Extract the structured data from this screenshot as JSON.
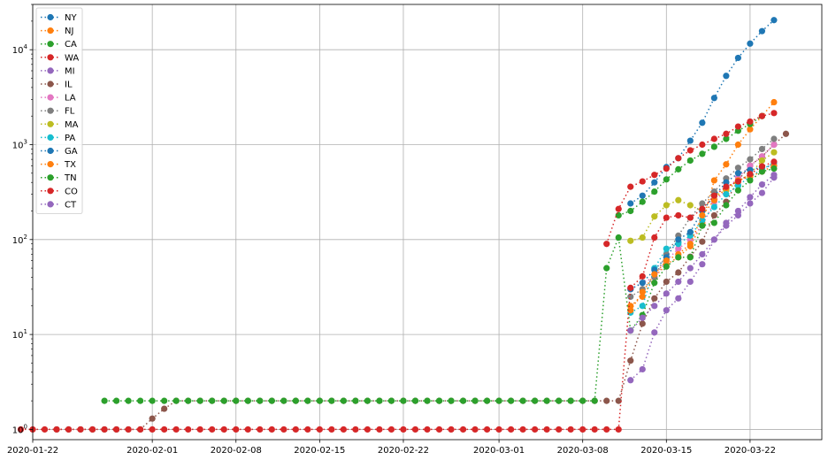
{
  "chart_data": {
    "type": "line",
    "title": "",
    "xlabel": "",
    "ylabel": "",
    "y_scale": "log",
    "ylim": [
      0.78,
      30000
    ],
    "xlim": [
      "2020-01-22",
      "2020-03-28"
    ],
    "grid": true,
    "legend_position": "top-left",
    "x_ticks": [
      "2020-01-22",
      "2020-02-01",
      "2020-02-08",
      "2020-02-15",
      "2020-02-22",
      "2020-03-01",
      "2020-03-08",
      "2020-03-15",
      "2020-03-22"
    ],
    "y_ticks": [
      {
        "value": 1,
        "base": "10",
        "exp": "0"
      },
      {
        "value": 10,
        "base": "10",
        "exp": "1"
      },
      {
        "value": 100,
        "base": "10",
        "exp": "2"
      },
      {
        "value": 1000,
        "base": "10",
        "exp": "3"
      },
      {
        "value": 10000,
        "base": "10",
        "exp": "4"
      }
    ],
    "series": [
      {
        "name": "NY",
        "color": "#1f77b4",
        "start": "2020-03-12",
        "values": [
          240,
          290,
          400,
          580,
          720,
          1100,
          1700,
          3100,
          5300,
          8200,
          11600,
          15700,
          20500
        ]
      },
      {
        "name": "NJ",
        "color": "#ff7f0e",
        "start": "2020-03-12",
        "values": [
          20,
          25,
          40,
          55,
          65,
          85,
          150,
          420,
          620,
          1000,
          1450,
          2000,
          2800
        ]
      },
      {
        "name": "CA",
        "color": "#2ca02c",
        "start": "2020-03-11",
        "values": [
          180,
          200,
          250,
          320,
          430,
          550,
          680,
          800,
          950,
          1150,
          1400,
          1650,
          2000
        ]
      },
      {
        "name": "WA",
        "color": "#d62728",
        "start": "2020-03-10",
        "values": [
          90,
          210,
          360,
          410,
          480,
          560,
          720,
          870,
          1000,
          1150,
          1300,
          1550,
          1750,
          2000,
          2150
        ]
      },
      {
        "name": "MI",
        "color": "#9467bd",
        "start": "2020-03-12",
        "values": [
          3.3,
          4.3,
          10.5,
          18,
          24,
          36,
          55,
          100,
          140,
          180,
          240,
          310,
          450
        ]
      },
      {
        "name": "IL",
        "color": "#8c564b",
        "start": "2020-01-24",
        "values": [
          1,
          1,
          1,
          1,
          1,
          1,
          1,
          1,
          1.3,
          1.65,
          2,
          2,
          2,
          2,
          2,
          2,
          2,
          2,
          2,
          2,
          2,
          2,
          2,
          2,
          2,
          2,
          2,
          2,
          2,
          2,
          2,
          2,
          2,
          2,
          2,
          2,
          2,
          2,
          2,
          2,
          2,
          2,
          2,
          2,
          2,
          2,
          2,
          2,
          5.3,
          13,
          24,
          36,
          45,
          66,
          95,
          180,
          250,
          420,
          600,
          750,
          1000,
          1300
        ]
      },
      {
        "name": "LA",
        "color": "#e377c2",
        "start": "2020-03-12",
        "values": [
          30,
          35,
          40,
          60,
          80,
          100,
          140,
          250,
          330,
          450,
          600,
          750,
          1000
        ]
      },
      {
        "name": "FL",
        "color": "#7f7f7f",
        "start": "2020-03-12",
        "values": [
          25,
          30,
          40,
          70,
          110,
          170,
          240,
          320,
          440,
          570,
          700,
          900,
          1150
        ]
      },
      {
        "name": "MA",
        "color": "#bcbd22",
        "start": "2020-03-12",
        "values": [
          97,
          105,
          175,
          230,
          260,
          230,
          200,
          290,
          330,
          410,
          490,
          680,
          830
        ]
      },
      {
        "name": "PA",
        "color": "#17becf",
        "start": "2020-03-12",
        "values": [
          17,
          20,
          50,
          80,
          90,
          110,
          160,
          220,
          300,
          370,
          460,
          550,
          640
        ]
      },
      {
        "name": "GA",
        "color": "#1f77b4",
        "start": "2020-03-12",
        "values": [
          30,
          35,
          48,
          65,
          100,
          120,
          200,
          290,
          400,
          500,
          540,
          580,
          600
        ]
      },
      {
        "name": "TX",
        "color": "#ff7f0e",
        "start": "2020-03-12",
        "values": [
          18,
          28,
          43,
          60,
          70,
          90,
          180,
          260,
          350,
          420,
          460,
          520,
          600
        ]
      },
      {
        "name": "TN",
        "color": "#2ca02c",
        "start": "2020-01-28",
        "values": [
          2,
          2,
          2,
          2,
          2,
          2,
          2,
          2,
          2,
          2,
          2,
          2,
          2,
          2,
          2,
          2,
          2,
          2,
          2,
          2,
          2,
          2,
          2,
          2,
          2,
          2,
          2,
          2,
          2,
          2,
          2,
          2,
          2,
          2,
          2,
          2,
          2,
          2,
          2,
          2,
          2,
          2,
          50,
          105,
          11,
          16,
          35,
          52,
          65,
          65,
          140,
          150,
          230,
          330,
          420,
          520,
          560
        ]
      },
      {
        "name": "CO",
        "color": "#d62728",
        "start": "2020-01-21",
        "values": [
          1,
          1,
          1,
          1,
          1,
          1,
          1,
          1,
          1,
          1,
          1,
          1,
          1,
          1,
          1,
          1,
          1,
          1,
          1,
          1,
          1,
          1,
          1,
          1,
          1,
          1,
          1,
          1,
          1,
          1,
          1,
          1,
          1,
          1,
          1,
          1,
          1,
          1,
          1,
          1,
          1,
          1,
          1,
          1,
          1,
          1,
          1,
          1,
          1,
          1,
          1,
          31,
          41,
          105,
          170,
          180,
          170,
          210,
          290,
          360,
          410,
          490,
          590,
          660
        ]
      },
      {
        "name": "CT",
        "color": "#9467bd",
        "start": "2020-03-12",
        "values": [
          11,
          15,
          20,
          27,
          36,
          50,
          70,
          100,
          150,
          200,
          280,
          380,
          480
        ]
      }
    ]
  }
}
